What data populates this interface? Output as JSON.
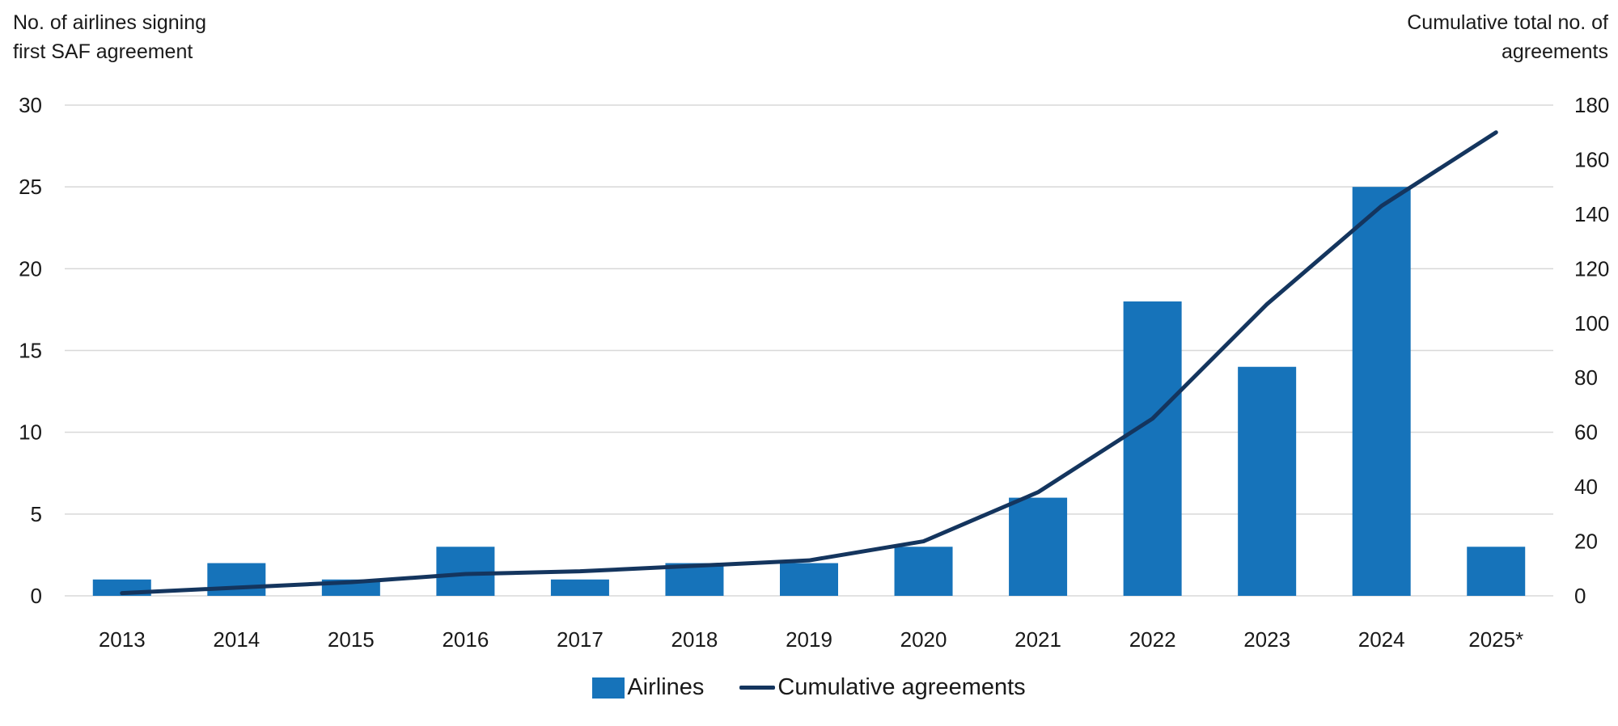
{
  "page": {
    "background": "#ffffff"
  },
  "chart_data": {
    "type": "combo",
    "subtypes": [
      "bar",
      "line"
    ],
    "grid": true,
    "grid_color": "#d8d8d8",
    "text_color": "#1a1a1a",
    "left_axis": {
      "title_line1": "No. of airlines signing",
      "title_line2": "first SAF agreement",
      "ticks": [
        0,
        5,
        10,
        15,
        20,
        25,
        30
      ],
      "min": 0,
      "max": 30
    },
    "right_axis": {
      "title_line1": "Cumulative total no. of",
      "title_line2": "agreements",
      "ticks": [
        0,
        20,
        40,
        60,
        80,
        100,
        120,
        140,
        160,
        180
      ],
      "min": 0,
      "max": 180
    },
    "categories": [
      "2013",
      "2014",
      "2015",
      "2016",
      "2017",
      "2018",
      "2019",
      "2020",
      "2021",
      "2022",
      "2023",
      "2024",
      "2025*"
    ],
    "series": [
      {
        "name": "Airlines",
        "type": "bar",
        "axis": "left",
        "color": "#1673ba",
        "values": [
          1,
          2,
          1,
          3,
          1,
          2,
          2,
          3,
          6,
          18,
          14,
          25,
          3
        ]
      },
      {
        "name": "Cumulative agreements",
        "type": "line",
        "axis": "right",
        "color": "#14355e",
        "values": [
          1,
          3,
          5,
          8,
          9,
          11,
          13,
          20,
          38,
          65,
          107,
          143,
          170
        ]
      }
    ],
    "legend": [
      {
        "label": "Airlines",
        "swatch": "square",
        "color": "#1673ba"
      },
      {
        "label": "Cumulative agreements",
        "swatch": "line",
        "color": "#14355e"
      }
    ],
    "legend_position": "bottom-center"
  }
}
